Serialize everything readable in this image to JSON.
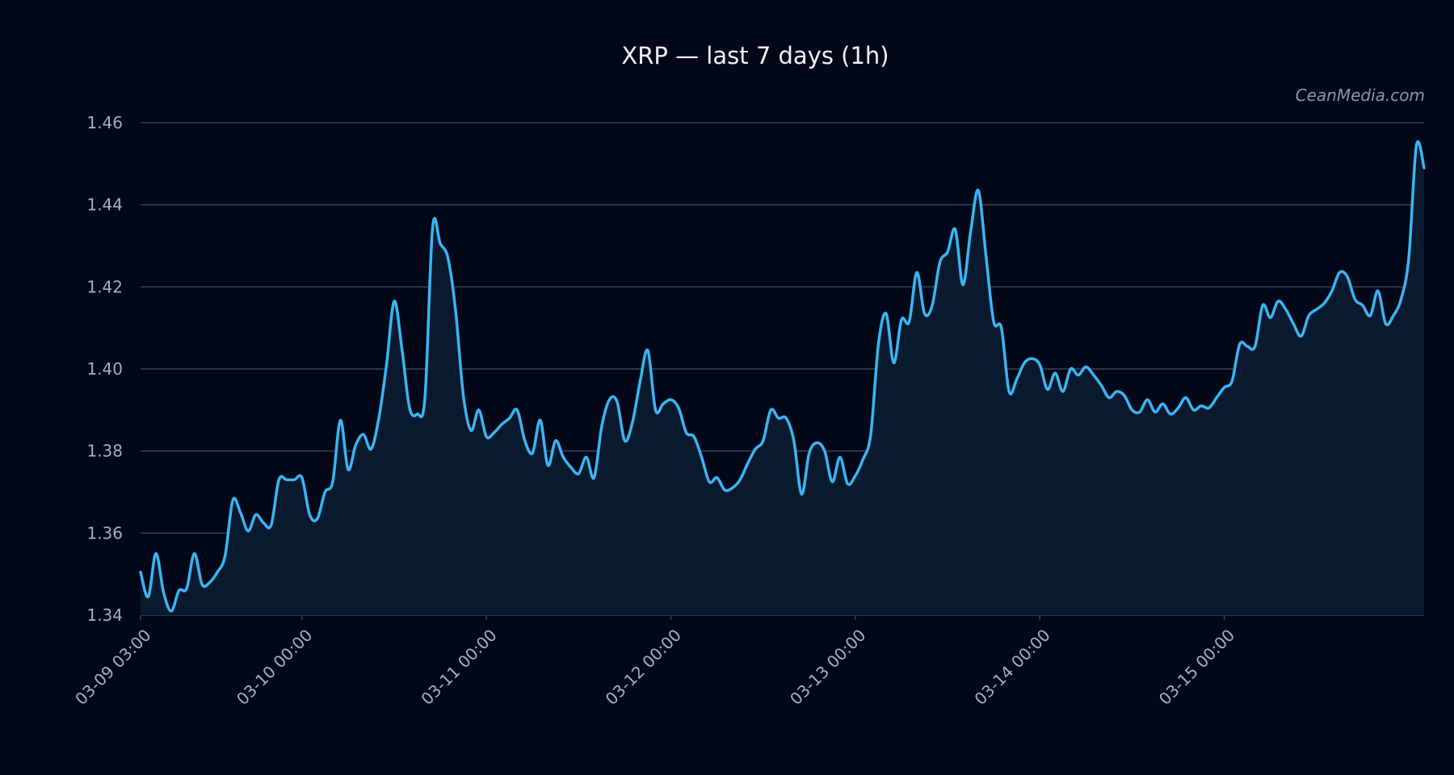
{
  "title": "XRP — last 7 days (1h)",
  "watermark": "CeanMedia.com",
  "colors": {
    "background": "#020818",
    "line": "#3ab4f2",
    "area": "#0a1a2e",
    "grid": "#3a4353",
    "tick_text": "#a6afbf"
  },
  "chart_data": {
    "type": "area",
    "title": "XRP — last 7 days (1h)",
    "xlabel": "",
    "ylabel": "",
    "ylim": [
      1.34,
      1.46
    ],
    "y_ticks": [
      1.34,
      1.36,
      1.38,
      1.4,
      1.42,
      1.44,
      1.46
    ],
    "y_tick_labels": [
      "1.34",
      "1.36",
      "1.38",
      "1.40",
      "1.42",
      "1.44",
      "1.46"
    ],
    "x_ticks": [
      0,
      21,
      45,
      69,
      93,
      117,
      141
    ],
    "x_tick_labels": [
      "03-09 03:00",
      "03-10 00:00",
      "03-11 00:00",
      "03-12 00:00",
      "03-13 00:00",
      "03-14 00:00",
      "03-15 00:00"
    ],
    "grid": true,
    "series": [
      {
        "values": [
          1.3505,
          1.3445,
          1.355,
          1.3455,
          1.341,
          1.346,
          1.3465,
          1.355,
          1.3475,
          1.348,
          1.3505,
          1.3545,
          1.368,
          1.365,
          1.3605,
          1.3645,
          1.3625,
          1.362,
          1.373,
          1.373,
          1.373,
          1.3735,
          1.3645,
          1.3635,
          1.37,
          1.3725,
          1.3875,
          1.3755,
          1.3815,
          1.384,
          1.3805,
          1.388,
          1.401,
          1.4165,
          1.405,
          1.3905,
          1.389,
          1.393,
          1.4345,
          1.4305,
          1.427,
          1.414,
          1.3935,
          1.385,
          1.39,
          1.3835,
          1.3845,
          1.3865,
          1.388,
          1.39,
          1.3825,
          1.3795,
          1.3875,
          1.3765,
          1.3825,
          1.3785,
          1.376,
          1.3745,
          1.3785,
          1.3735,
          1.386,
          1.3925,
          1.392,
          1.3825,
          1.387,
          1.397,
          1.4045,
          1.39,
          1.3915,
          1.3925,
          1.3905,
          1.3845,
          1.3835,
          1.3785,
          1.3725,
          1.3735,
          1.3705,
          1.371,
          1.373,
          1.377,
          1.3805,
          1.3825,
          1.39,
          1.388,
          1.388,
          1.3825,
          1.3695,
          1.3795,
          1.382,
          1.38,
          1.3725,
          1.3785,
          1.372,
          1.374,
          1.378,
          1.384,
          1.406,
          1.4135,
          1.4015,
          1.412,
          1.4115,
          1.4235,
          1.4135,
          1.4155,
          1.426,
          1.4285,
          1.434,
          1.4205,
          1.4335,
          1.4435,
          1.4275,
          1.4115,
          1.41,
          1.3945,
          1.3975,
          1.4015,
          1.4025,
          1.401,
          1.395,
          1.399,
          1.3945,
          1.4,
          1.3985,
          1.4005,
          1.3985,
          1.396,
          1.393,
          1.3945,
          1.3935,
          1.39,
          1.3895,
          1.3925,
          1.3895,
          1.3915,
          1.389,
          1.3905,
          1.393,
          1.39,
          1.391,
          1.3905,
          1.393,
          1.3955,
          1.397,
          1.406,
          1.4055,
          1.4055,
          1.4155,
          1.4125,
          1.4165,
          1.4145,
          1.411,
          1.408,
          1.413,
          1.4145,
          1.416,
          1.419,
          1.4235,
          1.4225,
          1.417,
          1.4155,
          1.413,
          1.419,
          1.411,
          1.413,
          1.417,
          1.427,
          1.4545,
          1.449
        ]
      }
    ]
  }
}
